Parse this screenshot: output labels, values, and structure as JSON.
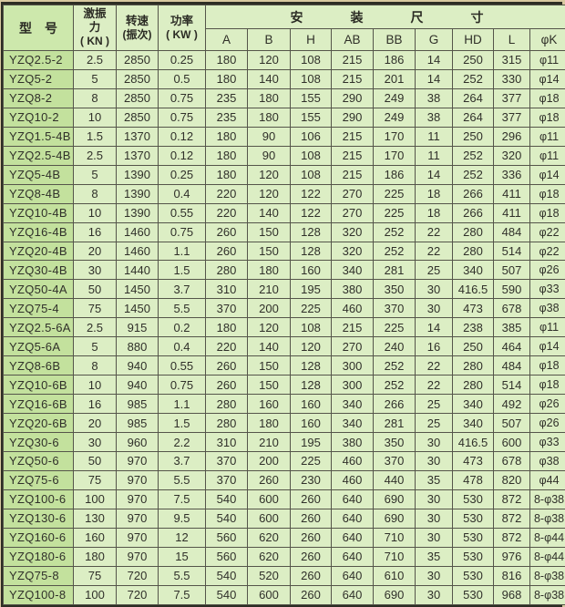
{
  "table": {
    "headers": {
      "model": "型　号",
      "force_l1": "激振",
      "force_l2": "力",
      "force_l3": "( KN )",
      "speed_l1": "转速",
      "speed_l2": "(振次)",
      "power_l1": "功率",
      "power_l2": "( KW )",
      "install_chars": [
        "安",
        "装",
        "尺",
        "寸"
      ],
      "dims": [
        "A",
        "B",
        "H",
        "AB",
        "BB",
        "G",
        "HD",
        "L",
        "φK"
      ]
    },
    "rows": [
      [
        "YZQ2.5-2",
        "2.5",
        "2850",
        "0.25",
        "180",
        "120",
        "108",
        "215",
        "186",
        "14",
        "250",
        "315",
        "φ11"
      ],
      [
        "YZQ5-2",
        "5",
        "2850",
        "0.5",
        "180",
        "140",
        "108",
        "215",
        "201",
        "14",
        "252",
        "330",
        "φ14"
      ],
      [
        "YZQ8-2",
        "8",
        "2850",
        "0.75",
        "235",
        "180",
        "155",
        "290",
        "249",
        "38",
        "264",
        "377",
        "φ18"
      ],
      [
        "YZQ10-2",
        "10",
        "2850",
        "0.75",
        "235",
        "180",
        "155",
        "290",
        "249",
        "38",
        "264",
        "377",
        "φ18"
      ],
      [
        "YZQ1.5-4B",
        "1.5",
        "1370",
        "0.12",
        "180",
        "90",
        "106",
        "215",
        "170",
        "11",
        "250",
        "296",
        "φ11"
      ],
      [
        "YZQ2.5-4B",
        "2.5",
        "1370",
        "0.12",
        "180",
        "90",
        "108",
        "215",
        "170",
        "11",
        "252",
        "320",
        "φ11"
      ],
      [
        "YZQ5-4B",
        "5",
        "1390",
        "0.25",
        "180",
        "120",
        "108",
        "215",
        "186",
        "14",
        "252",
        "336",
        "φ14"
      ],
      [
        "YZQ8-4B",
        "8",
        "1390",
        "0.4",
        "220",
        "120",
        "122",
        "270",
        "225",
        "18",
        "266",
        "411",
        "φ18"
      ],
      [
        "YZQ10-4B",
        "10",
        "1390",
        "0.55",
        "220",
        "140",
        "122",
        "270",
        "225",
        "18",
        "266",
        "411",
        "φ18"
      ],
      [
        "YZQ16-4B",
        "16",
        "1460",
        "0.75",
        "260",
        "150",
        "128",
        "320",
        "252",
        "22",
        "280",
        "484",
        "φ22"
      ],
      [
        "YZQ20-4B",
        "20",
        "1460",
        "1.1",
        "260",
        "150",
        "128",
        "320",
        "252",
        "22",
        "280",
        "514",
        "φ22"
      ],
      [
        "YZQ30-4B",
        "30",
        "1440",
        "1.5",
        "280",
        "180",
        "160",
        "340",
        "281",
        "25",
        "340",
        "507",
        "φ26"
      ],
      [
        "YZQ50-4A",
        "50",
        "1450",
        "3.7",
        "310",
        "210",
        "195",
        "380",
        "350",
        "30",
        "416.5",
        "590",
        "φ33"
      ],
      [
        "YZQ75-4",
        "75",
        "1450",
        "5.5",
        "370",
        "200",
        "225",
        "460",
        "370",
        "30",
        "473",
        "678",
        "φ38"
      ],
      [
        "YZQ2.5-6A",
        "2.5",
        "915",
        "0.2",
        "180",
        "120",
        "108",
        "215",
        "225",
        "14",
        "238",
        "385",
        "φ11"
      ],
      [
        "YZQ5-6A",
        "5",
        "880",
        "0.4",
        "220",
        "140",
        "120",
        "270",
        "240",
        "16",
        "250",
        "464",
        "φ14"
      ],
      [
        "YZQ8-6B",
        "8",
        "940",
        "0.55",
        "260",
        "150",
        "128",
        "300",
        "252",
        "22",
        "280",
        "484",
        "φ18"
      ],
      [
        "YZQ10-6B",
        "10",
        "940",
        "0.75",
        "260",
        "150",
        "128",
        "300",
        "252",
        "22",
        "280",
        "514",
        "φ18"
      ],
      [
        "YZQ16-6B",
        "16",
        "985",
        "1.1",
        "280",
        "160",
        "160",
        "340",
        "266",
        "25",
        "340",
        "492",
        "φ26"
      ],
      [
        "YZQ20-6B",
        "20",
        "985",
        "1.5",
        "280",
        "180",
        "160",
        "340",
        "281",
        "25",
        "340",
        "507",
        "φ26"
      ],
      [
        "YZQ30-6",
        "30",
        "960",
        "2.2",
        "310",
        "210",
        "195",
        "380",
        "350",
        "30",
        "416.5",
        "600",
        "φ33"
      ],
      [
        "YZQ50-6",
        "50",
        "970",
        "3.7",
        "370",
        "200",
        "225",
        "460",
        "370",
        "30",
        "473",
        "678",
        "φ38"
      ],
      [
        "YZQ75-6",
        "75",
        "970",
        "5.5",
        "370",
        "260",
        "230",
        "460",
        "440",
        "35",
        "478",
        "820",
        "φ44"
      ],
      [
        "YZQ100-6",
        "100",
        "970",
        "7.5",
        "540",
        "600",
        "260",
        "640",
        "690",
        "30",
        "530",
        "872",
        "8-φ38"
      ],
      [
        "YZQ130-6",
        "130",
        "970",
        "9.5",
        "540",
        "600",
        "260",
        "640",
        "690",
        "30",
        "530",
        "872",
        "8-φ38"
      ],
      [
        "YZQ160-6",
        "160",
        "970",
        "12",
        "560",
        "620",
        "260",
        "640",
        "710",
        "30",
        "530",
        "872",
        "8-φ44"
      ],
      [
        "YZQ180-6",
        "180",
        "970",
        "15",
        "560",
        "620",
        "260",
        "640",
        "710",
        "35",
        "530",
        "976",
        "8-φ44"
      ],
      [
        "YZQ75-8",
        "75",
        "720",
        "5.5",
        "540",
        "520",
        "260",
        "640",
        "610",
        "30",
        "530",
        "816",
        "8-φ38"
      ],
      [
        "YZQ100-8",
        "100",
        "720",
        "7.5",
        "540",
        "600",
        "260",
        "640",
        "690",
        "30",
        "530",
        "968",
        "8-φ38"
      ]
    ]
  },
  "colors": {
    "page_margin": "#d8c9a0",
    "cell_bg": "#dceec4",
    "model_col_bg": "#c3e19d",
    "model_head_bg": "#cde8ac",
    "grid_line": "#55554a",
    "outer_border": "#2d2d24",
    "text": "#30302a"
  }
}
